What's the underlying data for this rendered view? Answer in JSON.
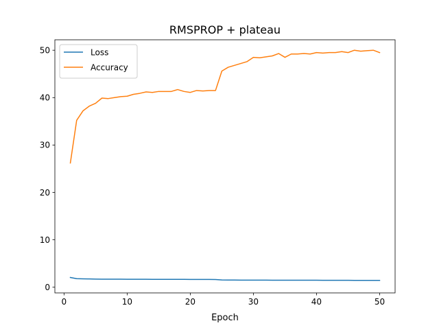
{
  "chart_data": {
    "type": "line",
    "title": "RMSPROP + plateau",
    "xlabel": "Epoch",
    "ylabel": "",
    "xlim": [
      -1.45,
      52.45
    ],
    "ylim": [
      -1.2,
      52.2
    ],
    "xticks": [
      0,
      10,
      20,
      30,
      40,
      50
    ],
    "yticks": [
      0,
      10,
      20,
      30,
      40,
      50
    ],
    "grid": false,
    "legend_position": "upper-left",
    "x": [
      1,
      2,
      3,
      4,
      5,
      6,
      7,
      8,
      9,
      10,
      11,
      12,
      13,
      14,
      15,
      16,
      17,
      18,
      19,
      20,
      21,
      22,
      23,
      24,
      25,
      26,
      27,
      28,
      29,
      30,
      31,
      32,
      33,
      34,
      35,
      36,
      37,
      38,
      39,
      40,
      41,
      42,
      43,
      44,
      45,
      46,
      47,
      48,
      49,
      50
    ],
    "series": [
      {
        "name": "Loss",
        "color": "#1f77b4",
        "values": [
          2.05,
          1.8,
          1.76,
          1.74,
          1.72,
          1.7,
          1.7,
          1.69,
          1.69,
          1.68,
          1.68,
          1.67,
          1.67,
          1.66,
          1.66,
          1.66,
          1.65,
          1.65,
          1.65,
          1.64,
          1.64,
          1.64,
          1.64,
          1.63,
          1.53,
          1.52,
          1.51,
          1.5,
          1.5,
          1.49,
          1.49,
          1.49,
          1.48,
          1.48,
          1.48,
          1.47,
          1.47,
          1.47,
          1.47,
          1.47,
          1.46,
          1.46,
          1.46,
          1.46,
          1.46,
          1.45,
          1.45,
          1.45,
          1.45,
          1.45
        ]
      },
      {
        "name": "Accuracy",
        "color": "#ff7f0e",
        "values": [
          26.2,
          35.2,
          37.2,
          38.2,
          38.8,
          39.9,
          39.8,
          40.0,
          40.2,
          40.3,
          40.7,
          40.9,
          41.2,
          41.1,
          41.3,
          41.3,
          41.3,
          41.7,
          41.3,
          41.1,
          41.5,
          41.4,
          41.5,
          41.5,
          45.6,
          46.4,
          46.8,
          47.2,
          47.6,
          48.5,
          48.4,
          48.6,
          48.8,
          49.3,
          48.5,
          49.2,
          49.2,
          49.3,
          49.2,
          49.5,
          49.4,
          49.5,
          49.5,
          49.7,
          49.5,
          50.0,
          49.8,
          49.9,
          50.0,
          49.5
        ]
      }
    ]
  }
}
